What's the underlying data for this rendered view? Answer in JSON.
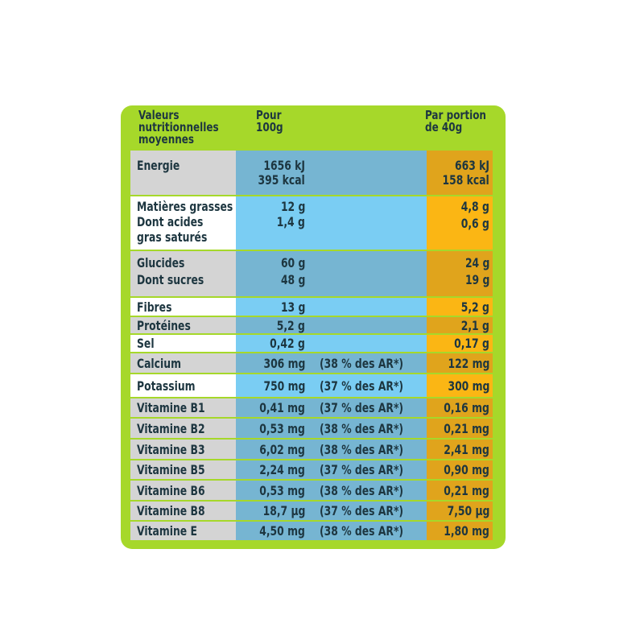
{
  "header": {
    "col1": "Valeurs nutritionnelles moyennes",
    "col1_lines": [
      "Valeurs",
      "nutritionnelles",
      "moyennes"
    ],
    "col2_lines": [
      "Pour",
      "100g"
    ],
    "col3_lines": [
      "Par portion",
      "de 40g"
    ]
  },
  "rows": [
    {
      "label_lines": [
        "Energie"
      ],
      "per100_lines": [
        "1656 kJ",
        "395 kcal"
      ],
      "ar": "",
      "portion_lines": [
        "663 kJ",
        "158 kcal"
      ]
    },
    {
      "label_lines": [
        "Matières grasses",
        "Dont acides",
        "gras saturés"
      ],
      "per100_lines": [
        "12 g",
        "1,4 g"
      ],
      "ar": "",
      "portion_lines": [
        "4,8 g",
        "0,6 g"
      ]
    },
    {
      "label_lines": [
        "Glucides",
        "Dont sucres"
      ],
      "per100_lines": [
        "60 g",
        "48 g"
      ],
      "ar": "",
      "portion_lines": [
        "24 g",
        "19 g"
      ]
    },
    {
      "label_lines": [
        "Fibres"
      ],
      "per100_lines": [
        "13 g"
      ],
      "ar": "",
      "portion_lines": [
        "5,2 g"
      ]
    },
    {
      "label_lines": [
        "Protéines"
      ],
      "per100_lines": [
        "5,2 g"
      ],
      "ar": "",
      "portion_lines": [
        "2,1 g"
      ]
    },
    {
      "label_lines": [
        "Sel"
      ],
      "per100_lines": [
        "0,42 g"
      ],
      "ar": "",
      "portion_lines": [
        "0,17 g"
      ]
    },
    {
      "label_lines": [
        "Calcium"
      ],
      "per100_lines": [
        "306 mg"
      ],
      "ar": "(38 % des AR*)",
      "portion_lines": [
        "122 mg"
      ]
    },
    {
      "label_lines": [
        "Potassium"
      ],
      "per100_lines": [
        "750 mg"
      ],
      "ar": "(37 % des AR*)",
      "portion_lines": [
        "300 mg"
      ]
    },
    {
      "label_lines": [
        "Vitamine B1"
      ],
      "per100_lines": [
        "0,41 mg"
      ],
      "ar": "(37 % des AR*)",
      "portion_lines": [
        "0,16 mg"
      ]
    },
    {
      "label_lines": [
        "Vitamine B2"
      ],
      "per100_lines": [
        "0,53 mg"
      ],
      "ar": "(38 % des AR*)",
      "portion_lines": [
        "0,21 mg"
      ]
    },
    {
      "label_lines": [
        "Vitamine B3"
      ],
      "per100_lines": [
        "6,02 mg"
      ],
      "ar": "(38 % des AR*)",
      "portion_lines": [
        "2,41 mg"
      ]
    },
    {
      "label_lines": [
        "Vitamine B5"
      ],
      "per100_lines": [
        "2,24 mg"
      ],
      "ar": "(37 % des AR*)",
      "portion_lines": [
        "0,90 mg"
      ]
    },
    {
      "label_lines": [
        "Vitamine B6"
      ],
      "per100_lines": [
        "0,53 mg"
      ],
      "ar": "(38 % des AR*)",
      "portion_lines": [
        "0,21 mg"
      ]
    },
    {
      "label_lines": [
        "Vitamine B8"
      ],
      "per100_lines": [
        "18,7 µg"
      ],
      "ar": "(37 % des AR*)",
      "portion_lines": [
        "7,50 µg"
      ]
    },
    {
      "label_lines": [
        "Vitamine E"
      ],
      "per100_lines": [
        "4,50 mg"
      ],
      "ar": "(38 % des AR*)",
      "portion_lines": [
        "1,80 mg"
      ]
    }
  ],
  "colors": {
    "card_green": "#a6d82a",
    "label_shaded": "#d4d4d4",
    "label_plain": "#ffffff",
    "blue_shaded": "#76b5d2",
    "blue_plain": "#7acdf3",
    "orange_shaded": "#e0a41c",
    "orange_plain": "#fbb614",
    "text": "#1d3640"
  }
}
